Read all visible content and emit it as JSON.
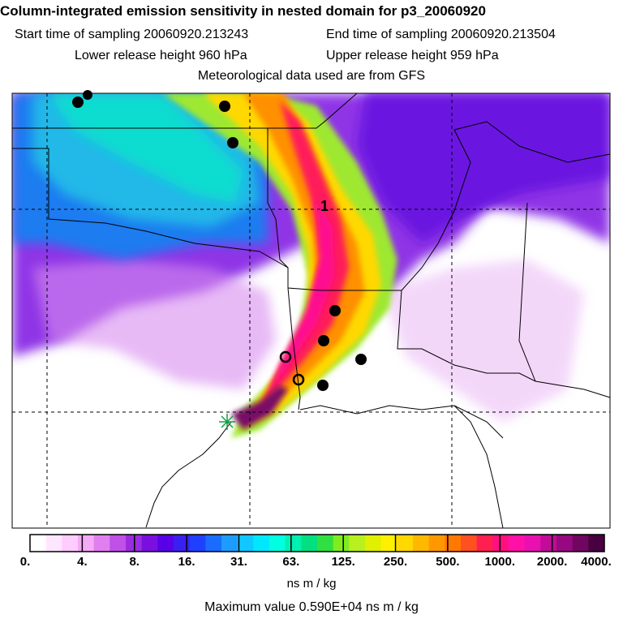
{
  "title": "Column-integrated emission sensitivity in nested domain for p3_20060920",
  "start_sampling": "Start time of sampling 20060920.213243",
  "end_sampling": "End time of sampling 20060920.213504",
  "lower_release": "Lower release height  960 hPa",
  "upper_release": "Upper release height  959 hPa",
  "met_data": "Meteorological data used are from GFS",
  "plume_label": "1",
  "colorbar": {
    "labels": [
      "0.",
      "4.",
      "8.",
      "16.",
      "31.",
      "63.",
      "125.",
      "250.",
      "500.",
      "1000.",
      "2000.",
      "4000."
    ],
    "colors": [
      "#ffffff",
      "#ffe6ff",
      "#ffccff",
      "#f5aaf5",
      "#e080f0",
      "#c050e8",
      "#9a2ce0",
      "#7a10e0",
      "#5a00e8",
      "#3a20f0",
      "#2040ff",
      "#1a6cff",
      "#1c9cff",
      "#10c8ff",
      "#00e8ff",
      "#00ffe0",
      "#00f0b0",
      "#00e080",
      "#30e040",
      "#80ec20",
      "#b8f020",
      "#e0f000",
      "#fff000",
      "#ffd800",
      "#ffb800",
      "#ff9800",
      "#ff7800",
      "#ff5020",
      "#ff2050",
      "#ff1080",
      "#ff10a8",
      "#e810b0",
      "#c00c98",
      "#980880",
      "#700660",
      "#480040"
    ],
    "units": "ns m / kg"
  },
  "max_value": "Maximum value  0.590E+04 ns m / kg"
}
